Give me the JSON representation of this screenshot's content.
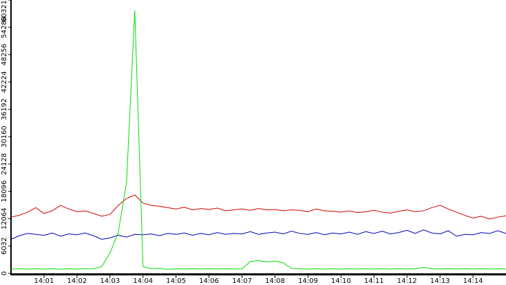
{
  "chart_data": {
    "type": "line",
    "x": [
      840,
      840.25,
      840.5,
      840.75,
      841,
      841.25,
      841.5,
      841.75,
      842,
      842.25,
      842.5,
      842.75,
      843,
      843.25,
      843.5,
      843.75,
      844,
      844.25,
      844.5,
      844.75,
      845,
      845.25,
      845.5,
      845.75,
      846,
      846.25,
      846.5,
      846.75,
      847,
      847.25,
      847.5,
      847.75,
      848,
      848.25,
      848.5,
      848.75,
      849,
      849.25,
      849.5,
      849.75,
      850,
      850.25,
      850.5,
      850.75,
      851,
      851.25,
      851.5,
      851.75,
      852,
      852.25,
      852.5,
      852.75,
      853,
      853.25,
      853.5,
      853.75,
      854,
      854.25,
      854.5,
      854.75,
      855
    ],
    "series": [
      {
        "color": "#cc0000",
        "values": [
          12400,
          12800,
          13500,
          14500,
          13200,
          13800,
          15000,
          14200,
          13600,
          13800,
          13200,
          12600,
          13000,
          15000,
          16500,
          17300,
          15500,
          15000,
          14800,
          14500,
          14200,
          14600,
          14000,
          14300,
          14100,
          14400,
          13800,
          14000,
          14200,
          13900,
          14300,
          14000,
          14100,
          13800,
          14000,
          13900,
          13600,
          14200,
          13800,
          13700,
          13500,
          13800,
          13400,
          13600,
          13900,
          13500,
          13300,
          13700,
          14000,
          13600,
          13800,
          14500,
          15000,
          14200,
          13500,
          12800,
          12200,
          12600,
          12000,
          12400,
          12700
        ]
      },
      {
        "color": "#0000bb",
        "values": [
          7500,
          8300,
          8800,
          8600,
          8400,
          8900,
          8200,
          8700,
          8500,
          8900,
          8300,
          7500,
          7800,
          8400,
          8000,
          8600,
          8500,
          8700,
          8300,
          8800,
          8600,
          8900,
          8400,
          8800,
          8500,
          9000,
          8600,
          8800,
          8700,
          9200,
          8600,
          8900,
          9100,
          8700,
          9300,
          8800,
          8600,
          9000,
          8500,
          8900,
          8700,
          9100,
          8600,
          9200,
          8800,
          9300,
          8700,
          9000,
          9500,
          8800,
          9600,
          8900,
          8700,
          9400,
          8200,
          8600,
          8500,
          9000,
          8800,
          9400,
          8800
        ]
      },
      {
        "color": "#00dd00",
        "values": [
          900,
          1000,
          950,
          1000,
          950,
          1000,
          900,
          1000,
          950,
          1000,
          1050,
          1500,
          4500,
          9000,
          20000,
          58000,
          1500,
          1000,
          1100,
          900,
          1000,
          950,
          1000,
          950,
          1000,
          950,
          1000,
          950,
          1000,
          2600,
          2800,
          2500,
          2700,
          2300,
          1100,
          1000,
          950,
          1000,
          950,
          1000,
          950,
          1000,
          950,
          1000,
          950,
          1000,
          950,
          1000,
          950,
          1000,
          1300,
          1000,
          950,
          1000,
          950,
          1000,
          950,
          1000,
          950,
          1000,
          950
        ]
      }
    ],
    "xlim": [
      840,
      855
    ],
    "xticks": [
      {
        "value": 841,
        "label": "14:01"
      },
      {
        "value": 842,
        "label": "14:02"
      },
      {
        "value": 843,
        "label": "14:03"
      },
      {
        "value": 844,
        "label": "14:04"
      },
      {
        "value": 845,
        "label": "14:05"
      },
      {
        "value": 846,
        "label": "14:06"
      },
      {
        "value": 847,
        "label": "14:07"
      },
      {
        "value": 848,
        "label": "14:08"
      },
      {
        "value": 849,
        "label": "14:09"
      },
      {
        "value": 850,
        "label": "14:10"
      },
      {
        "value": 851,
        "label": "14:11"
      },
      {
        "value": 852,
        "label": "14:12"
      },
      {
        "value": 853,
        "label": "14:13"
      },
      {
        "value": 854,
        "label": "14:14"
      }
    ],
    "ylim": [
      0,
      60321
    ],
    "yticks": [
      0,
      6032,
      12064,
      18096,
      24128,
      30160,
      36192,
      42224,
      48256,
      54288,
      60321
    ]
  }
}
